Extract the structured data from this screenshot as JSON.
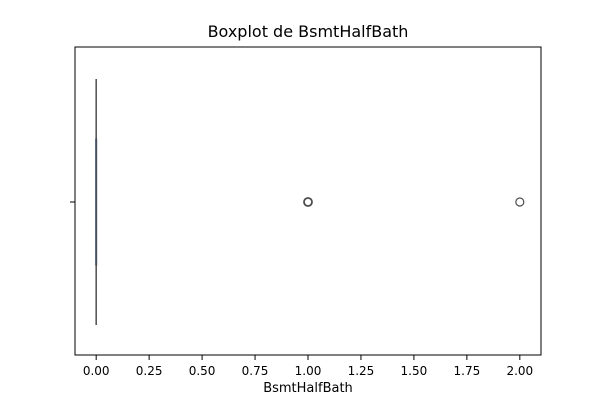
{
  "chart_data": {
    "type": "boxplot",
    "title": "Boxplot de BsmtHalfBath",
    "xlabel": "BsmtHalfBath",
    "ylabel": "",
    "xlim": [
      -0.1,
      2.1
    ],
    "xticks": [
      0.0,
      0.25,
      0.5,
      0.75,
      1.0,
      1.25,
      1.5,
      1.75,
      2.0
    ],
    "xtick_labels": [
      "0.00",
      "0.25",
      "0.50",
      "0.75",
      "1.00",
      "1.25",
      "1.50",
      "1.75",
      "2.00"
    ],
    "box": {
      "whisker_low": 0.0,
      "q1": 0.0,
      "median": 0.0,
      "q3": 0.0,
      "whisker_high": 0.0
    },
    "outliers": [
      1.0,
      2.0
    ],
    "orientation": "horizontal",
    "grid": false,
    "colors": {
      "box": "#2b5b9e",
      "line": "#4d4d4d",
      "outlier": "#4d4d4d"
    }
  }
}
